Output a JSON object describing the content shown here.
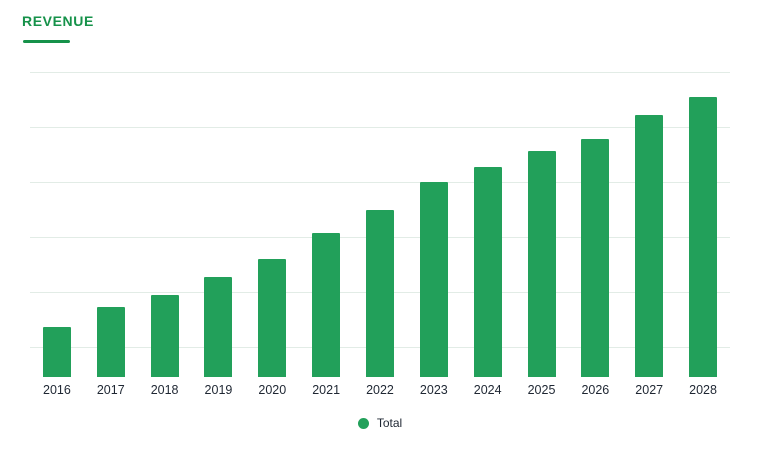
{
  "page": {
    "title": "REVENUE"
  },
  "legend": {
    "label": "Total"
  },
  "colors": {
    "bar": "#22a05a",
    "title_accent": "#16924a",
    "gridline": "#e2ece6",
    "axis_label": "#1f2733"
  },
  "chart_data": {
    "type": "bar",
    "title": "REVENUE",
    "categories": [
      "2016",
      "2017",
      "2018",
      "2019",
      "2020",
      "2021",
      "2022",
      "2023",
      "2024",
      "2025",
      "2026",
      "2027",
      "2028"
    ],
    "series": [
      {
        "name": "Total",
        "values": [
          50,
          70,
          82,
          100,
          118,
          144,
          167,
          195,
          210,
          226,
          238,
          262,
          280
        ]
      }
    ],
    "xlabel": "",
    "ylabel": "",
    "ylim": [
      0,
      305
    ],
    "y_axis_tick_labels": [],
    "note": "Y-axis has no visible tick labels; values are relative heights estimated from gridlines",
    "grid": true,
    "gridline_count": 6,
    "legend_position": "bottom-center",
    "bar_color": "#22a05a"
  }
}
